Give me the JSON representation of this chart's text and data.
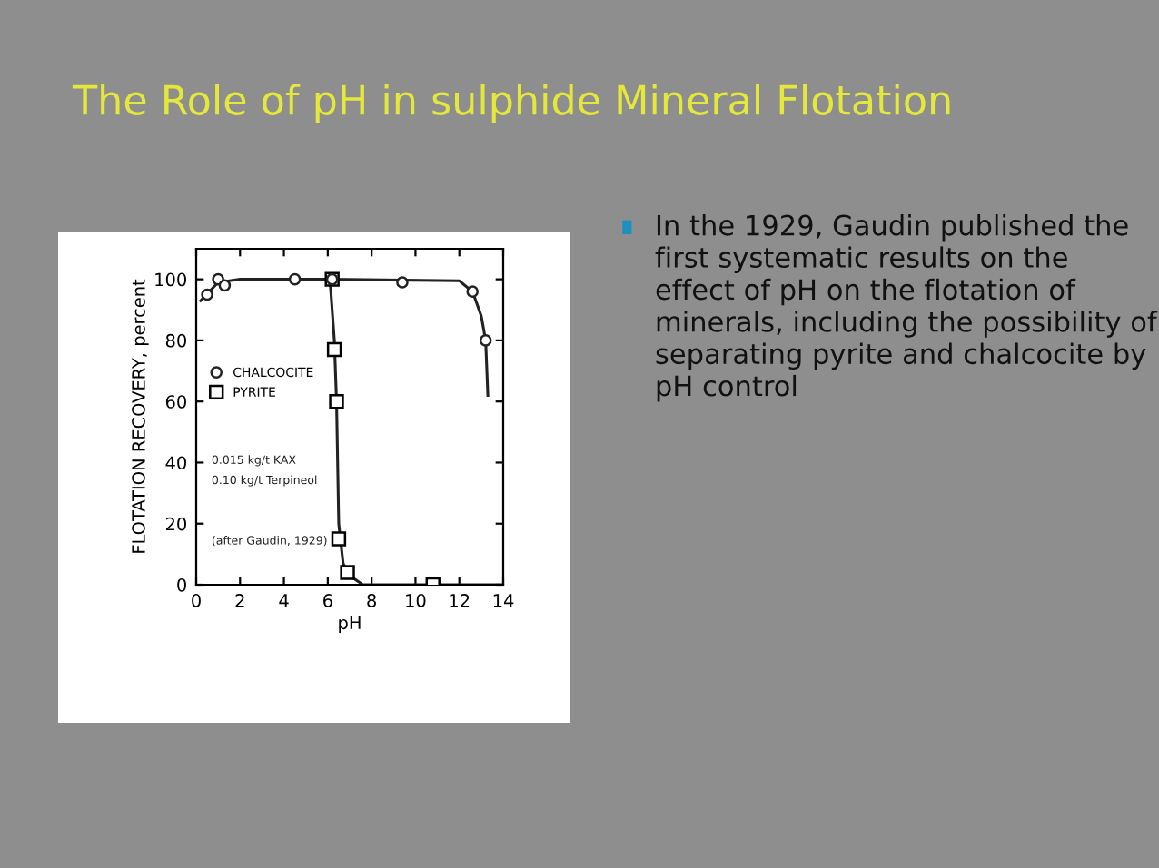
{
  "chart_data": {
    "type": "line",
    "title": "The Role of pH in sulphide Mineral Flotation",
    "xlabel": "pH",
    "ylabel": "FLOTATION RECOVERY, percent",
    "xlim": [
      0,
      14
    ],
    "xticks": [
      0,
      2,
      4,
      6,
      8,
      10,
      12,
      14
    ],
    "ylim": [
      0,
      110
    ],
    "yticks": [
      0,
      20,
      40,
      60,
      80,
      100
    ],
    "grid": false,
    "legend": "left",
    "series": [
      {
        "name": "CHALCOCITE",
        "type": "scatter",
        "marker": "circle",
        "color": "#222222",
        "x": [
          0.5,
          1.0,
          1.3,
          4.5,
          6.2,
          9.4,
          12.6,
          13.2
        ],
        "values": [
          95,
          100,
          98,
          100,
          100,
          99,
          96,
          80
        ]
      },
      {
        "name": "PYRITE",
        "type": "scatter",
        "marker": "square",
        "color": "#000000",
        "x": [
          6.2,
          6.3,
          6.4,
          6.5,
          6.9,
          10.8
        ],
        "values": [
          100,
          77,
          60,
          15,
          4,
          0
        ]
      },
      {
        "marker": "none",
        "color": "#222222",
        "x": [
          0.2,
          0.6,
          1.0,
          2.0,
          6.0,
          12.0,
          12.6,
          13.0,
          13.2,
          13.3
        ],
        "values": [
          93,
          96,
          99,
          100,
          100,
          99.5,
          96,
          88,
          80,
          62
        ]
      },
      {
        "marker": "none",
        "color": "#222222",
        "x": [
          6.1,
          6.3,
          6.4,
          6.5,
          6.7,
          7.0,
          7.6,
          14.0
        ],
        "values": [
          100,
          80,
          60,
          20,
          7,
          3,
          0,
          0
        ]
      }
    ],
    "annotations": [
      "0.015 kg/t KAX",
      "0.10 kg/t Terpineol",
      "(after Gaudin, 1929)",
      "In the 1929, Gaudin published the first systematic results on the effect of pH on the flotation of minerals, including the possibility of separating pyrite and chalcocite by pH control"
    ]
  }
}
